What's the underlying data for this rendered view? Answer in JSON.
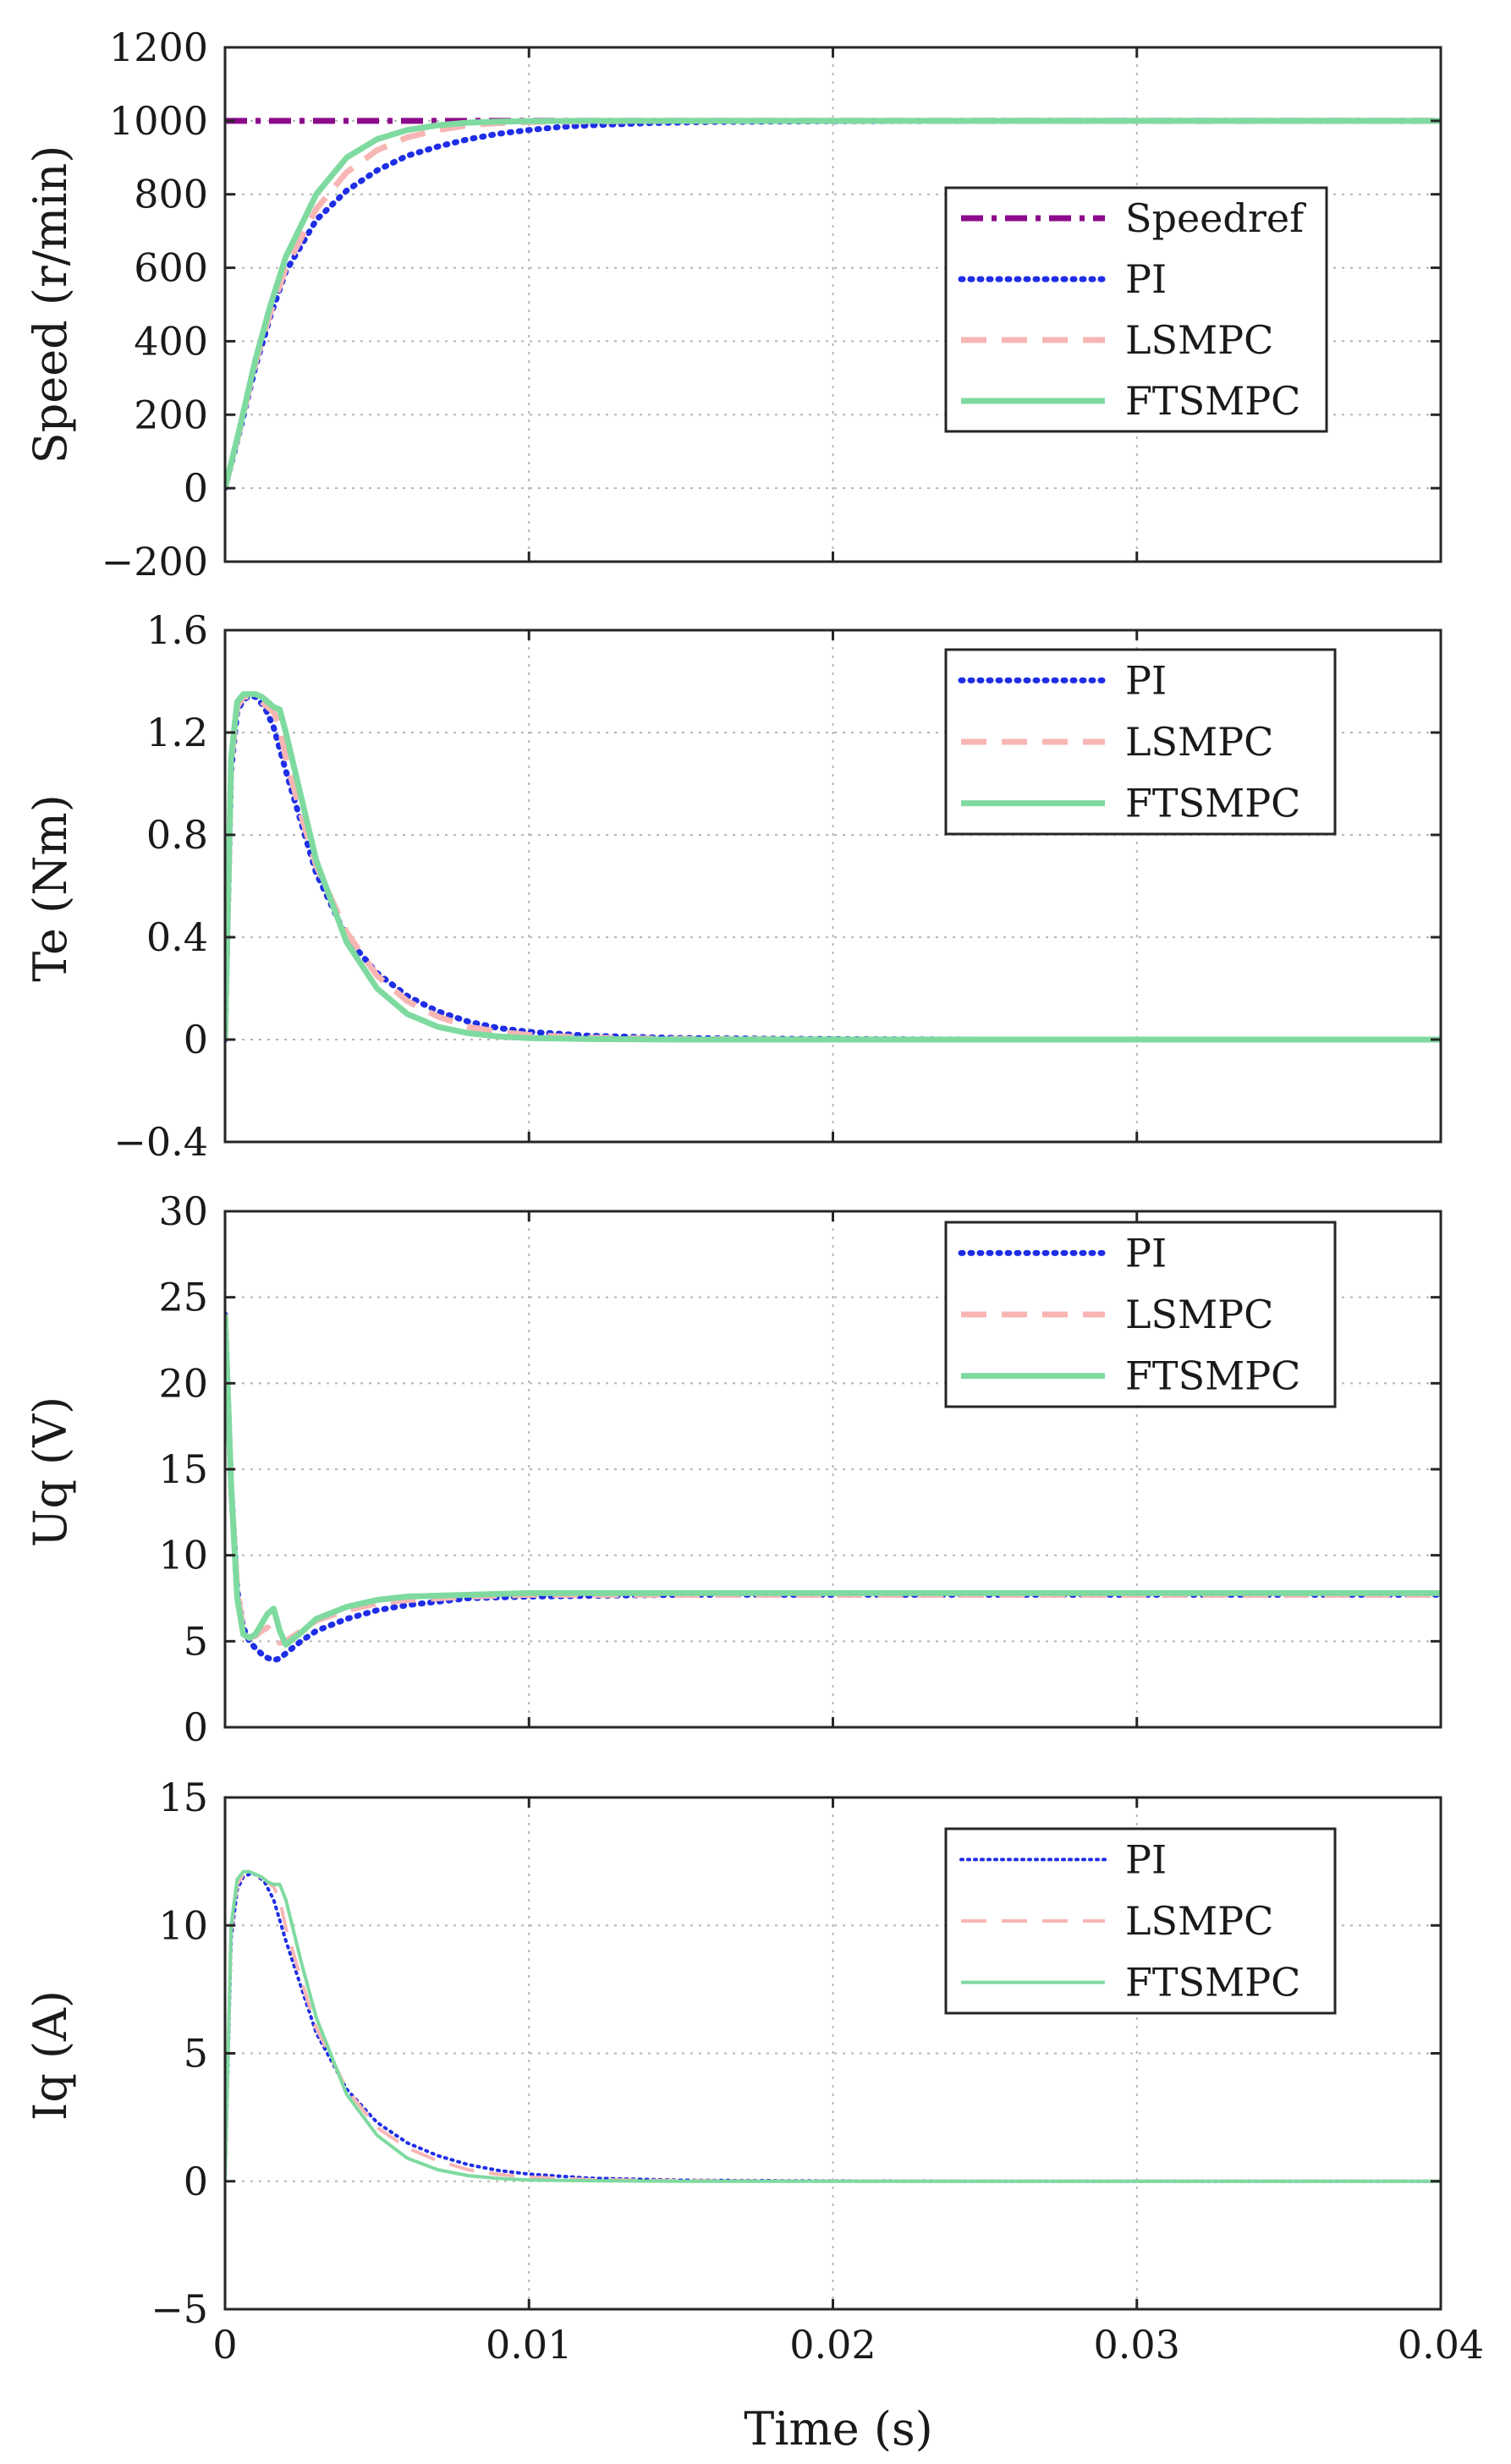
{
  "figure": {
    "xlabel": "Time (s)",
    "xlim": [
      0,
      0.04
    ],
    "xticks": [
      0,
      0.01,
      0.02,
      0.03,
      0.04
    ],
    "xtick_labels": [
      "0",
      "0.01",
      "0.02",
      "0.03",
      "0.04"
    ]
  },
  "colors": {
    "Speedref": "#8b0a8b",
    "PI": "#1f2ee6",
    "LSMPC": "#f7b6b4",
    "FTSMPC": "#7fdaa0"
  },
  "chart_data": [
    {
      "type": "line",
      "id": "speed",
      "title": "",
      "xlabel": "",
      "ylabel": "Speed (r/min)",
      "ylim": [
        -200,
        1200
      ],
      "yticks": [
        -200,
        0,
        200,
        400,
        600,
        800,
        1000,
        1200
      ],
      "ytick_labels": [
        "−200",
        "0",
        "200",
        "400",
        "600",
        "800",
        "1000",
        "1200"
      ],
      "legend_position": "right",
      "legend": [
        "Speedref",
        "PI",
        "LSMPC",
        "FTSMPC"
      ],
      "series": [
        {
          "name": "Speedref",
          "style": "dashdot",
          "x": [
            0,
            0.04
          ],
          "y": [
            1000,
            1000
          ]
        },
        {
          "name": "PI",
          "style": "dotted",
          "x": [
            0,
            0.0005,
            0.001,
            0.0015,
            0.002,
            0.003,
            0.004,
            0.005,
            0.006,
            0.007,
            0.008,
            0.009,
            0.01,
            0.011,
            0.012,
            0.014,
            0.016,
            0.02,
            0.025,
            0.04
          ],
          "y": [
            0,
            160,
            330,
            470,
            590,
            730,
            810,
            865,
            905,
            930,
            950,
            965,
            975,
            983,
            988,
            994,
            997,
            999,
            1000,
            1000
          ]
        },
        {
          "name": "LSMPC",
          "style": "dashed",
          "x": [
            0,
            0.0005,
            0.001,
            0.0015,
            0.002,
            0.003,
            0.004,
            0.005,
            0.006,
            0.007,
            0.008,
            0.009,
            0.01,
            0.012,
            0.015,
            0.02,
            0.04
          ],
          "y": [
            0,
            165,
            340,
            480,
            600,
            760,
            860,
            920,
            955,
            975,
            988,
            994,
            997,
            999,
            1000,
            1000,
            1000
          ]
        },
        {
          "name": "FTSMPC",
          "style": "solid",
          "x": [
            0,
            0.0005,
            0.001,
            0.0015,
            0.002,
            0.003,
            0.004,
            0.005,
            0.006,
            0.007,
            0.008,
            0.009,
            0.01,
            0.012,
            0.015,
            0.02,
            0.04
          ],
          "y": [
            0,
            170,
            350,
            500,
            630,
            800,
            900,
            950,
            975,
            988,
            995,
            998,
            999,
            1000,
            1000,
            1000,
            1000
          ]
        }
      ]
    },
    {
      "type": "line",
      "id": "te",
      "title": "",
      "xlabel": "",
      "ylabel": "Te (Nm)",
      "ylim": [
        -0.4,
        1.6
      ],
      "yticks": [
        -0.4,
        0,
        0.4,
        0.8,
        1.2,
        1.6
      ],
      "ytick_labels": [
        "−0.4",
        "0",
        "0.4",
        "0.8",
        "1.2",
        "1.6"
      ],
      "legend_position": "top-right",
      "legend": [
        "PI",
        "LSMPC",
        "FTSMPC"
      ],
      "series": [
        {
          "name": "PI",
          "style": "dotted",
          "x": [
            0,
            0.0002,
            0.0004,
            0.0006,
            0.0008,
            0.001,
            0.0013,
            0.0016,
            0.002,
            0.0025,
            0.003,
            0.004,
            0.005,
            0.006,
            0.007,
            0.008,
            0.009,
            0.01,
            0.012,
            0.015,
            0.02,
            0.025,
            0.04
          ],
          "y": [
            0,
            1.05,
            1.28,
            1.33,
            1.34,
            1.34,
            1.3,
            1.22,
            1.05,
            0.85,
            0.65,
            0.4,
            0.26,
            0.17,
            0.11,
            0.07,
            0.045,
            0.03,
            0.015,
            0.006,
            0.002,
            0,
            0
          ]
        },
        {
          "name": "LSMPC",
          "style": "dashed",
          "x": [
            0,
            0.0002,
            0.0004,
            0.0006,
            0.0008,
            0.001,
            0.0013,
            0.0016,
            0.0018,
            0.002,
            0.0025,
            0.003,
            0.004,
            0.005,
            0.006,
            0.007,
            0.008,
            0.009,
            0.01,
            0.012,
            0.015,
            0.02,
            0.04
          ],
          "y": [
            0,
            1.08,
            1.3,
            1.34,
            1.34,
            1.34,
            1.31,
            1.28,
            1.22,
            1.1,
            0.88,
            0.68,
            0.42,
            0.25,
            0.15,
            0.09,
            0.05,
            0.03,
            0.018,
            0.007,
            0.002,
            0,
            0
          ]
        },
        {
          "name": "FTSMPC",
          "style": "solid",
          "x": [
            0,
            0.0002,
            0.0004,
            0.0006,
            0.0008,
            0.001,
            0.0012,
            0.0014,
            0.0016,
            0.0018,
            0.002,
            0.0025,
            0.003,
            0.004,
            0.005,
            0.006,
            0.007,
            0.008,
            0.009,
            0.01,
            0.012,
            0.015,
            0.02,
            0.04
          ],
          "y": [
            0,
            1.1,
            1.32,
            1.35,
            1.35,
            1.35,
            1.34,
            1.32,
            1.3,
            1.29,
            1.2,
            0.95,
            0.7,
            0.38,
            0.2,
            0.1,
            0.05,
            0.025,
            0.012,
            0.006,
            0.002,
            0,
            0,
            0
          ]
        }
      ]
    },
    {
      "type": "line",
      "id": "uq",
      "title": "",
      "xlabel": "",
      "ylabel": "Uq (V)",
      "ylim": [
        0,
        30
      ],
      "yticks": [
        0,
        5,
        10,
        15,
        20,
        25,
        30
      ],
      "ytick_labels": [
        "0",
        "5",
        "10",
        "15",
        "20",
        "25",
        "30"
      ],
      "legend_position": "top-right",
      "legend": [
        "PI",
        "LSMPC",
        "FTSMPC"
      ],
      "series": [
        {
          "name": "PI",
          "style": "dotted",
          "x": [
            0,
            0.0002,
            0.0004,
            0.0006,
            0.0008,
            0.001,
            0.0013,
            0.0016,
            0.0018,
            0.002,
            0.0025,
            0.003,
            0.004,
            0.005,
            0.006,
            0.008,
            0.01,
            0.015,
            0.02,
            0.04
          ],
          "y": [
            24,
            14,
            8,
            5.8,
            5.0,
            4.6,
            4.1,
            3.9,
            4.0,
            4.3,
            5.0,
            5.6,
            6.3,
            6.8,
            7.1,
            7.5,
            7.6,
            7.7,
            7.7,
            7.7
          ]
        },
        {
          "name": "LSMPC",
          "style": "dashed",
          "x": [
            0,
            0.0002,
            0.0004,
            0.0006,
            0.0008,
            0.001,
            0.0012,
            0.0014,
            0.0016,
            0.0018,
            0.002,
            0.0025,
            0.003,
            0.004,
            0.005,
            0.006,
            0.008,
            0.01,
            0.015,
            0.02,
            0.04
          ],
          "y": [
            24,
            14,
            8,
            5.6,
            5.2,
            5.3,
            5.6,
            5.8,
            5.4,
            4.9,
            5.0,
            5.6,
            6.2,
            6.8,
            7.2,
            7.4,
            7.6,
            7.7,
            7.7,
            7.7,
            7.7
          ]
        },
        {
          "name": "FTSMPC",
          "style": "solid",
          "x": [
            0,
            0.0002,
            0.0004,
            0.0006,
            0.0008,
            0.001,
            0.0012,
            0.0014,
            0.0016,
            0.0018,
            0.002,
            0.0025,
            0.003,
            0.004,
            0.005,
            0.006,
            0.008,
            0.01,
            0.015,
            0.02,
            0.04
          ],
          "y": [
            24,
            14,
            7.5,
            5.4,
            5.2,
            5.4,
            6.0,
            6.6,
            6.9,
            5.6,
            4.8,
            5.5,
            6.3,
            7.0,
            7.4,
            7.6,
            7.7,
            7.8,
            7.8,
            7.8,
            7.8
          ]
        }
      ]
    },
    {
      "type": "line",
      "id": "iq",
      "title": "",
      "xlabel": "Time (s)",
      "ylabel": "Iq (A)",
      "ylim": [
        -5,
        15
      ],
      "yticks": [
        -5,
        0,
        5,
        10,
        15
      ],
      "ytick_labels": [
        "−5",
        "0",
        "5",
        "10",
        "15"
      ],
      "legend_position": "top-right",
      "legend": [
        "PI",
        "LSMPC",
        "FTSMPC"
      ],
      "series": [
        {
          "name": "PI",
          "style": "dotted",
          "x": [
            0,
            0.0002,
            0.0004,
            0.0006,
            0.0008,
            0.001,
            0.0013,
            0.0016,
            0.002,
            0.0025,
            0.003,
            0.004,
            0.005,
            0.006,
            0.007,
            0.008,
            0.009,
            0.01,
            0.012,
            0.015,
            0.02,
            0.025,
            0.04
          ],
          "y": [
            0,
            9.5,
            11.4,
            11.9,
            12.0,
            12.0,
            11.7,
            11.0,
            9.4,
            7.6,
            5.8,
            3.6,
            2.3,
            1.5,
            1.0,
            0.65,
            0.42,
            0.28,
            0.12,
            0.04,
            0.01,
            0,
            0
          ]
        },
        {
          "name": "LSMPC",
          "style": "dashed",
          "x": [
            0,
            0.0002,
            0.0004,
            0.0006,
            0.0008,
            0.001,
            0.0013,
            0.0016,
            0.0018,
            0.002,
            0.0025,
            0.003,
            0.004,
            0.005,
            0.006,
            0.007,
            0.008,
            0.009,
            0.01,
            0.012,
            0.015,
            0.02,
            0.04
          ],
          "y": [
            0,
            9.8,
            11.6,
            12.0,
            12.0,
            12.0,
            11.8,
            11.5,
            11.0,
            9.9,
            7.9,
            6.0,
            3.6,
            2.1,
            1.3,
            0.8,
            0.45,
            0.27,
            0.16,
            0.06,
            0.02,
            0,
            0
          ]
        },
        {
          "name": "FTSMPC",
          "style": "solid",
          "x": [
            0,
            0.0002,
            0.0004,
            0.0006,
            0.0008,
            0.001,
            0.0012,
            0.0014,
            0.0016,
            0.0018,
            0.002,
            0.0025,
            0.003,
            0.004,
            0.005,
            0.006,
            0.007,
            0.008,
            0.009,
            0.01,
            0.012,
            0.015,
            0.02,
            0.04
          ],
          "y": [
            0,
            10.0,
            11.8,
            12.1,
            12.1,
            12.0,
            11.9,
            11.7,
            11.6,
            11.6,
            11.0,
            8.6,
            6.4,
            3.4,
            1.8,
            0.9,
            0.45,
            0.22,
            0.11,
            0.05,
            0.02,
            0,
            0,
            0
          ]
        }
      ]
    }
  ]
}
